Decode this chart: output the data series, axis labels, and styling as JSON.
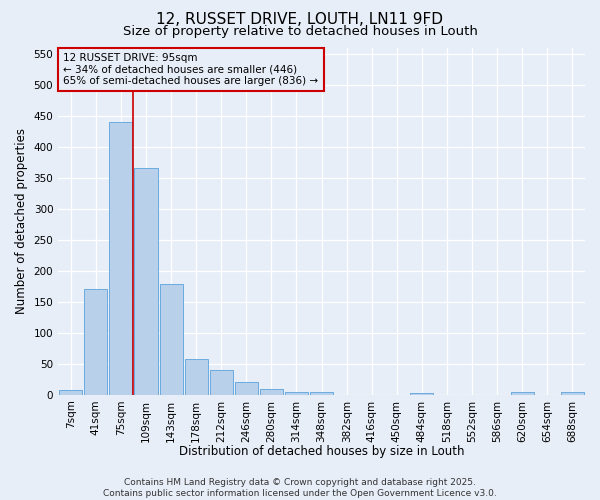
{
  "title": "12, RUSSET DRIVE, LOUTH, LN11 9FD",
  "subtitle": "Size of property relative to detached houses in Louth",
  "xlabel": "Distribution of detached houses by size in Louth",
  "ylabel": "Number of detached properties",
  "categories": [
    "7sqm",
    "41sqm",
    "75sqm",
    "109sqm",
    "143sqm",
    "178sqm",
    "212sqm",
    "246sqm",
    "280sqm",
    "314sqm",
    "348sqm",
    "382sqm",
    "416sqm",
    "450sqm",
    "484sqm",
    "518sqm",
    "552sqm",
    "586sqm",
    "620sqm",
    "654sqm",
    "688sqm"
  ],
  "values": [
    7,
    170,
    440,
    365,
    178,
    57,
    40,
    20,
    10,
    5,
    5,
    0,
    0,
    0,
    3,
    0,
    0,
    0,
    5,
    0,
    5
  ],
  "bar_color": "#b8d0ea",
  "bar_edge_color": "#6aabe0",
  "vline_x": 2.5,
  "vline_color": "#cc0000",
  "annotation_text": "12 RUSSET DRIVE: 95sqm\n← 34% of detached houses are smaller (446)\n65% of semi-detached houses are larger (836) →",
  "annotation_box_color": "#cc0000",
  "ylim": [
    0,
    560
  ],
  "yticks": [
    0,
    50,
    100,
    150,
    200,
    250,
    300,
    350,
    400,
    450,
    500,
    550
  ],
  "footer": "Contains HM Land Registry data © Crown copyright and database right 2025.\nContains public sector information licensed under the Open Government Licence v3.0.",
  "background_color": "#e8eef8",
  "grid_color": "#ffffff",
  "title_fontsize": 11,
  "subtitle_fontsize": 9.5,
  "axis_label_fontsize": 8.5,
  "tick_fontsize": 7.5,
  "annotation_fontsize": 7.5,
  "footer_fontsize": 6.5
}
